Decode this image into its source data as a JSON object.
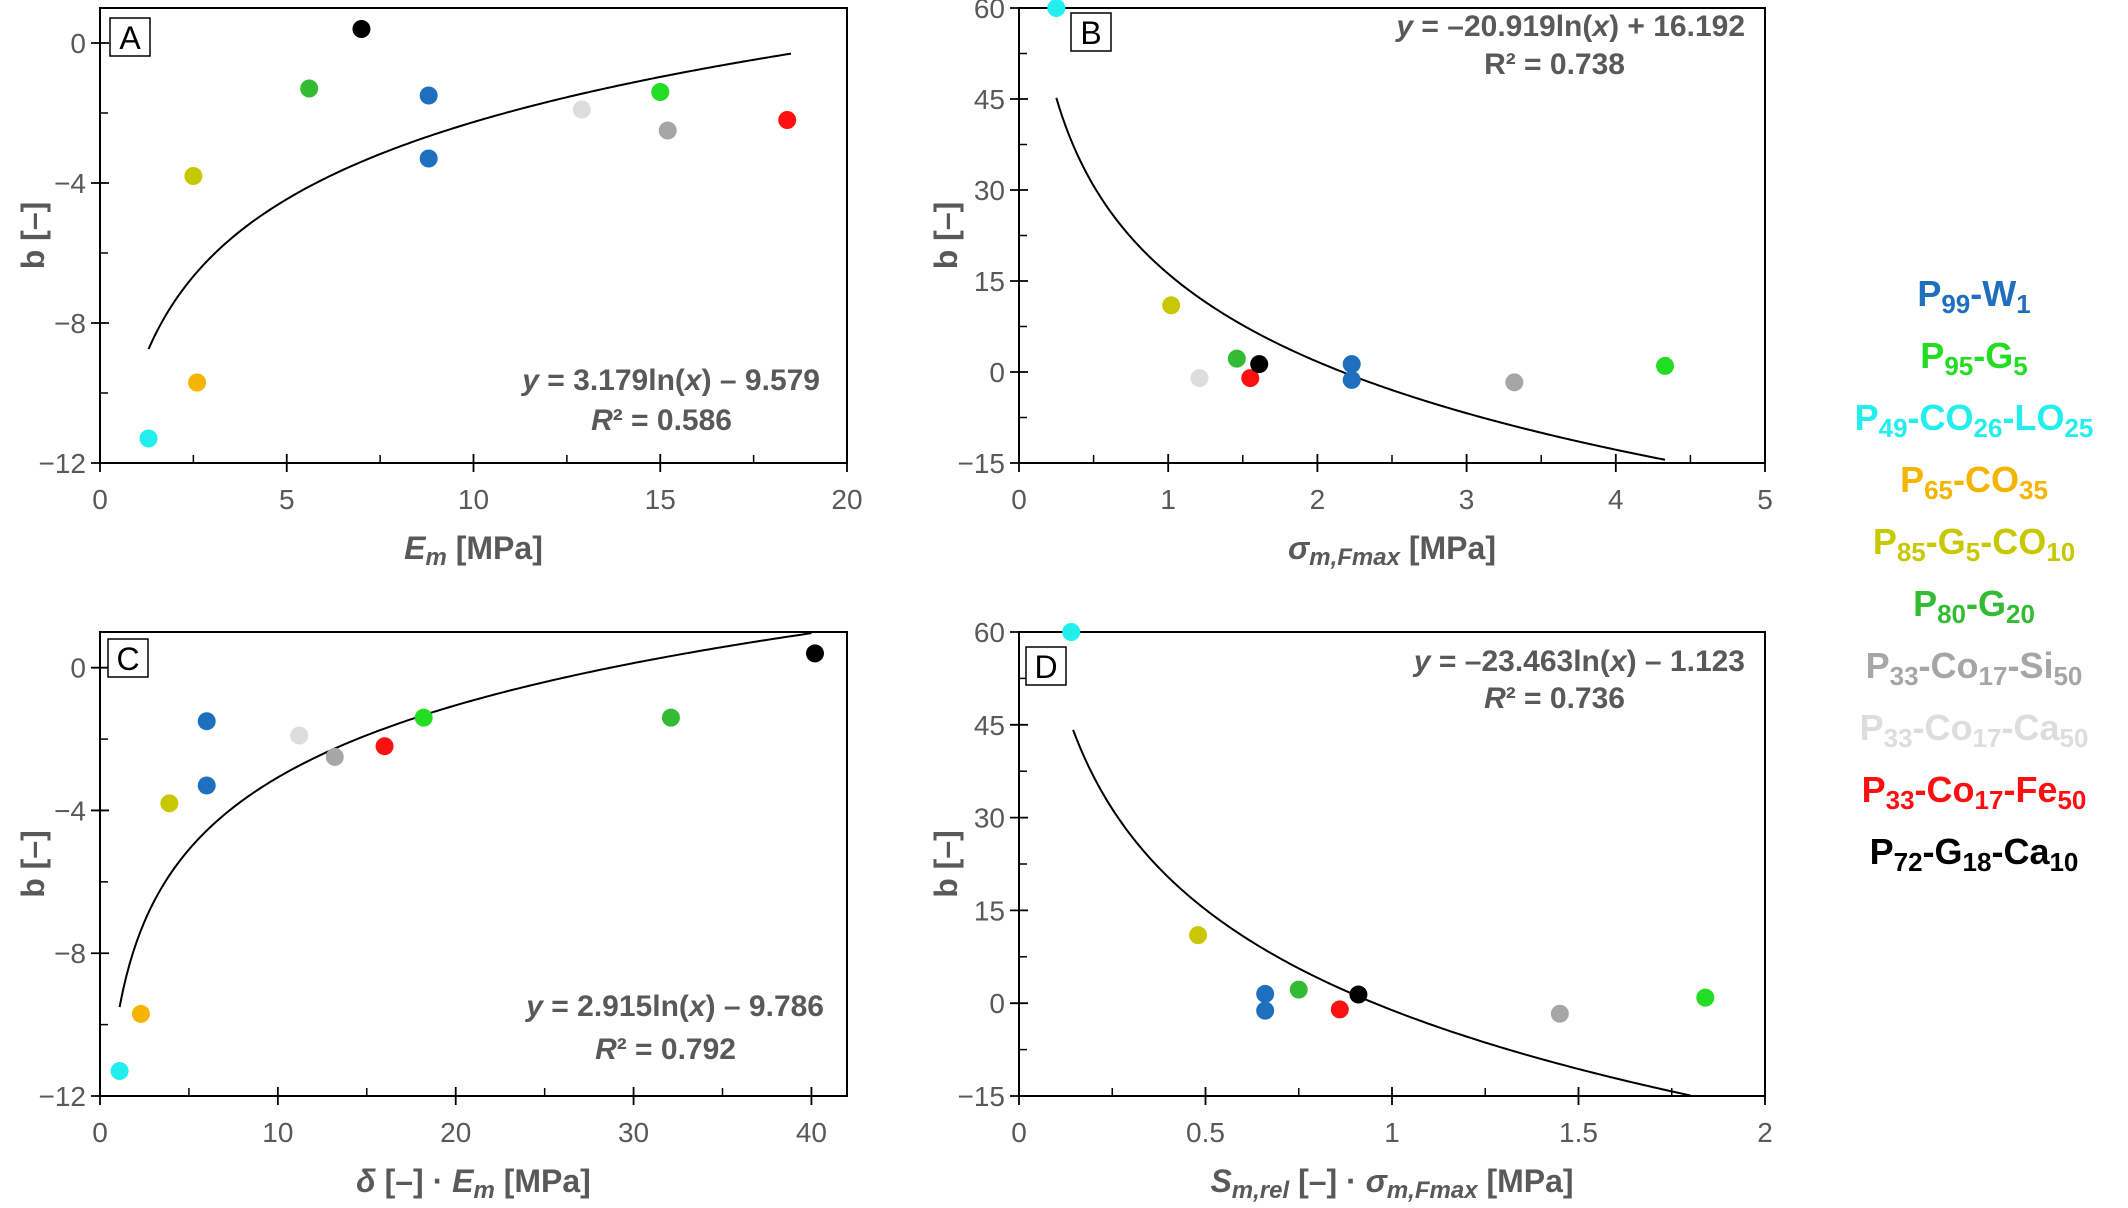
{
  "chart_data": [
    {
      "panel": "A",
      "type": "scatter",
      "xlabel": {
        "main": "E",
        "sub": "m",
        "unit": " [MPa]"
      },
      "ylabel": "b [–]",
      "xlim": [
        0,
        20
      ],
      "ylim": [
        -12,
        1
      ],
      "xticks": [
        0,
        5,
        10,
        15,
        20
      ],
      "yticks": [
        0,
        -4,
        -8,
        -12
      ],
      "grid": false,
      "fit": {
        "a": 3.179,
        "c": -9.579,
        "x_range": [
          1.3,
          18.5
        ],
        "eq_prefix": "y",
        "eq_body": " = 3.179ln(",
        "eq_var": "x",
        "eq_tail": ") – 9.579",
        "r2_label": "R",
        "r2_value": "² = 0.586",
        "r2_italic": true
      },
      "points": [
        {
          "series": "P99-W1",
          "x": 8.8,
          "y": -1.5
        },
        {
          "series": "P99-W1",
          "x": 8.8,
          "y": -3.3
        },
        {
          "series": "P95-G5",
          "x": 15.0,
          "y": -1.4
        },
        {
          "series": "P49-CO26-LO25",
          "x": 1.3,
          "y": -11.3
        },
        {
          "series": "P65-CO35",
          "x": 2.6,
          "y": -9.7
        },
        {
          "series": "P85-G5-CO10",
          "x": 2.5,
          "y": -3.8
        },
        {
          "series": "P80-G20",
          "x": 5.6,
          "y": -1.3
        },
        {
          "series": "P33-Co17-Si50",
          "x": 15.2,
          "y": -2.5
        },
        {
          "series": "P33-Co17-Ca50",
          "x": 12.9,
          "y": -1.9
        },
        {
          "series": "P33-Co17-Fe50",
          "x": 18.4,
          "y": -2.2
        },
        {
          "series": "P72-G18-Ca10",
          "x": 7.0,
          "y": 0.4
        }
      ]
    },
    {
      "panel": "B",
      "type": "scatter",
      "xlabel": {
        "main": "σ",
        "sub": "m,Fmax",
        "unit": " [MPa]"
      },
      "ylabel": "b [–]",
      "xlim": [
        0,
        5
      ],
      "ylim": [
        -15,
        60
      ],
      "xticks": [
        0,
        1,
        2,
        3,
        4,
        5
      ],
      "yticks": [
        60,
        45,
        30,
        15,
        0,
        -15
      ],
      "grid": false,
      "fit": {
        "a": -20.919,
        "c": 16.192,
        "x_range": [
          0.25,
          4.33
        ],
        "eq_prefix": "y",
        "eq_body": " = –20.919ln(",
        "eq_var": "x",
        "eq_tail": ") + 16.192",
        "r2_label": "R",
        "r2_value": "² = 0.738",
        "r2_italic": false
      },
      "points": [
        {
          "series": "P99-W1",
          "x": 2.23,
          "y": 1.3
        },
        {
          "series": "P99-W1",
          "x": 2.23,
          "y": -1.3
        },
        {
          "series": "P95-G5",
          "x": 4.33,
          "y": 1.0
        },
        {
          "series": "P49-CO26-LO25",
          "x": 0.25,
          "y": 60.0
        },
        {
          "series": "P85-G5-CO10",
          "x": 1.02,
          "y": 11.0
        },
        {
          "series": "P80-G20",
          "x": 1.46,
          "y": 2.2
        },
        {
          "series": "P33-Co17-Si50",
          "x": 3.32,
          "y": -1.7
        },
        {
          "series": "P33-Co17-Ca50",
          "x": 1.21,
          "y": -1.0
        },
        {
          "series": "P33-Co17-Fe50",
          "x": 1.55,
          "y": -1.0
        },
        {
          "series": "P72-G18-Ca10",
          "x": 1.61,
          "y": 1.3
        }
      ]
    },
    {
      "panel": "C",
      "type": "scatter",
      "xlabel": {
        "pre": "δ",
        "mid": " [–] · ",
        "main": "E",
        "sub": "m",
        "unit": " [MPa]"
      },
      "ylabel": "b [–]",
      "xlim": [
        0,
        42
      ],
      "ylim": [
        -12,
        1
      ],
      "xticks": [
        0,
        10,
        20,
        30,
        40
      ],
      "yticks": [
        0,
        -4,
        -8,
        -12
      ],
      "grid": false,
      "fit": {
        "a": 2.915,
        "c": -9.786,
        "x_range": [
          1.1,
          40.0
        ],
        "eq_prefix": "y",
        "eq_body": " = 2.915ln(",
        "eq_var": "x",
        "eq_tail": ") – 9.786",
        "r2_label": "R",
        "r2_value": "² = 0.792",
        "r2_italic": true
      },
      "points": [
        {
          "series": "P99-W1",
          "x": 6.0,
          "y": -1.5
        },
        {
          "series": "P99-W1",
          "x": 6.0,
          "y": -3.3
        },
        {
          "series": "P95-G5",
          "x": 18.2,
          "y": -1.4
        },
        {
          "series": "P49-CO26-LO25",
          "x": 1.1,
          "y": -11.3
        },
        {
          "series": "P65-CO35",
          "x": 2.3,
          "y": -9.7
        },
        {
          "series": "P85-G5-CO10",
          "x": 3.9,
          "y": -3.8
        },
        {
          "series": "P80-G20",
          "x": 32.1,
          "y": -1.4
        },
        {
          "series": "P33-Co17-Si50",
          "x": 13.2,
          "y": -2.5
        },
        {
          "series": "P33-Co17-Ca50",
          "x": 11.2,
          "y": -1.9
        },
        {
          "series": "P33-Co17-Fe50",
          "x": 16.0,
          "y": -2.2
        },
        {
          "series": "P72-G18-Ca10",
          "x": 40.2,
          "y": 0.4
        }
      ]
    },
    {
      "panel": "D",
      "type": "scatter",
      "xlabel": {
        "main": "S",
        "sub": "m,rel",
        "mid": " [–] · ",
        "main2": "σ",
        "sub2": "m,Fmax",
        "unit": " [MPa]"
      },
      "ylabel": "b [–]",
      "xlim": [
        0,
        2
      ],
      "ylim": [
        -15,
        60
      ],
      "xticks": [
        0,
        0.5,
        1,
        1.5,
        2
      ],
      "yticks": [
        60,
        45,
        30,
        15,
        0,
        -15
      ],
      "grid": false,
      "fit": {
        "a": -23.463,
        "c": -1.123,
        "x_range": [
          0.145,
          1.8
        ],
        "eq_prefix": "y",
        "eq_body": " = –23.463ln(",
        "eq_var": "x",
        "eq_tail": ") – 1.123",
        "r2_label": "R",
        "r2_value": "² = 0.736",
        "r2_italic": true
      },
      "points": [
        {
          "series": "P99-W1",
          "x": 0.66,
          "y": 1.5
        },
        {
          "series": "P99-W1",
          "x": 0.66,
          "y": -1.2
        },
        {
          "series": "P95-G5",
          "x": 1.84,
          "y": 0.9
        },
        {
          "series": "P49-CO26-LO25",
          "x": 0.14,
          "y": 60.0
        },
        {
          "series": "P85-G5-CO10",
          "x": 0.48,
          "y": 11.0
        },
        {
          "series": "P80-G20",
          "x": 0.75,
          "y": 2.2
        },
        {
          "series": "P33-Co17-Si50",
          "x": 1.45,
          "y": -1.7
        },
        {
          "series": "P33-Co17-Fe50",
          "x": 0.86,
          "y": -1.0
        },
        {
          "series": "P72-G18-Ca10",
          "x": 0.91,
          "y": 1.4
        }
      ]
    }
  ],
  "legend": [
    {
      "id": "P99-W1",
      "color": "#1f6fbf",
      "parts": [
        [
          "P",
          ""
        ],
        [
          "99",
          "sub"
        ],
        [
          "-W",
          ""
        ],
        [
          "1",
          "sub"
        ]
      ]
    },
    {
      "id": "P95-G5",
      "color": "#22dd22",
      "parts": [
        [
          "P",
          ""
        ],
        [
          "95",
          "sub"
        ],
        [
          "-G",
          ""
        ],
        [
          "5",
          "sub"
        ]
      ]
    },
    {
      "id": "P49-CO26-LO25",
      "color": "#22eeee",
      "parts": [
        [
          "P",
          ""
        ],
        [
          "49",
          "sub"
        ],
        [
          "-CO",
          ""
        ],
        [
          "26",
          "sub"
        ],
        [
          "-LO",
          ""
        ],
        [
          "25",
          "sub"
        ]
      ]
    },
    {
      "id": "P65-CO35",
      "color": "#f5b400",
      "parts": [
        [
          "P",
          ""
        ],
        [
          "65",
          "sub"
        ],
        [
          "-CO",
          ""
        ],
        [
          "35",
          "sub"
        ]
      ]
    },
    {
      "id": "P85-G5-CO10",
      "color": "#c8c800",
      "parts": [
        [
          "P",
          ""
        ],
        [
          "85",
          "sub"
        ],
        [
          "-G",
          ""
        ],
        [
          "5",
          "sub"
        ],
        [
          "-CO",
          ""
        ],
        [
          "10",
          "sub"
        ]
      ]
    },
    {
      "id": "P80-G20",
      "color": "#33bb33",
      "parts": [
        [
          "P",
          ""
        ],
        [
          "80",
          "sub"
        ],
        [
          "-G",
          ""
        ],
        [
          "20",
          "sub"
        ]
      ]
    },
    {
      "id": "P33-Co17-Si50",
      "color": "#a6a6a6",
      "parts": [
        [
          "P",
          ""
        ],
        [
          "33",
          "sub"
        ],
        [
          "-Co",
          ""
        ],
        [
          "17",
          "sub"
        ],
        [
          "-Si",
          ""
        ],
        [
          "50",
          "sub"
        ]
      ]
    },
    {
      "id": "P33-Co17-Ca50",
      "color": "#dddddd",
      "parts": [
        [
          "P",
          ""
        ],
        [
          "33",
          "sub"
        ],
        [
          "-Co",
          ""
        ],
        [
          "17",
          "sub"
        ],
        [
          "-Ca",
          ""
        ],
        [
          "50",
          "sub"
        ]
      ]
    },
    {
      "id": "P33-Co17-Fe50",
      "color": "#ff1010",
      "parts": [
        [
          "P",
          ""
        ],
        [
          "33",
          "sub"
        ],
        [
          "-Co",
          ""
        ],
        [
          "17",
          "sub"
        ],
        [
          "-Fe",
          ""
        ],
        [
          "50",
          "sub"
        ]
      ]
    },
    {
      "id": "P72-G18-Ca10",
      "color": "#000000",
      "parts": [
        [
          "P",
          ""
        ],
        [
          "72",
          "sub"
        ],
        [
          "-G",
          ""
        ],
        [
          "18",
          "sub"
        ],
        [
          "-Ca",
          ""
        ],
        [
          "10",
          "sub"
        ]
      ]
    }
  ]
}
